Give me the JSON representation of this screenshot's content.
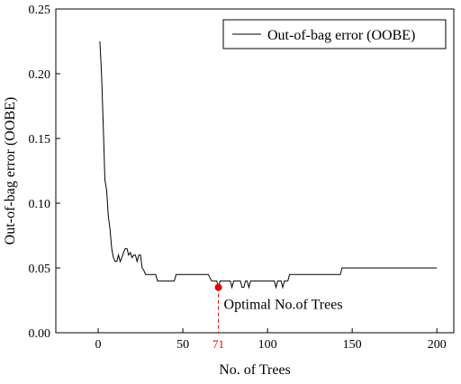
{
  "chart_data": {
    "type": "line",
    "xlabel": "No. of Trees",
    "ylabel": "Out-of-bag error (OOBE)",
    "xlim": [
      -25,
      210
    ],
    "ylim": [
      0,
      0.25
    ],
    "x_ticks": [
      0,
      50,
      100,
      150,
      200
    ],
    "x_tick_labels": [
      "0",
      "50",
      "100",
      "150",
      "200"
    ],
    "y_ticks": [
      0.0,
      0.05,
      0.1,
      0.15,
      0.2,
      0.25
    ],
    "y_tick_labels": [
      "0.00",
      "0.05",
      "0.10",
      "0.15",
      "0.20",
      "0.25"
    ],
    "legend": {
      "position": "top-right",
      "entries": [
        "Out-of-bag error (OOBE)"
      ]
    },
    "series": [
      {
        "name": "Out-of-bag error (OOBE)",
        "color": "#000000",
        "x": [
          1,
          2,
          3,
          4,
          5,
          6,
          7,
          8,
          9,
          10,
          11,
          12,
          13,
          14,
          15,
          16,
          17,
          18,
          19,
          20,
          21,
          22,
          23,
          24,
          25,
          26,
          27,
          28,
          30,
          32,
          34,
          35,
          36,
          45,
          46,
          49,
          50,
          55,
          60,
          65,
          67,
          68,
          70,
          71,
          72,
          74,
          78,
          79,
          80,
          82,
          84,
          85,
          86,
          87,
          88,
          89,
          90,
          92,
          95,
          100,
          104,
          105,
          106,
          108,
          109,
          110,
          112,
          113,
          114,
          115,
          130,
          140,
          143,
          144,
          200
        ],
        "y": [
          0.225,
          0.2,
          0.16,
          0.118,
          0.11,
          0.09,
          0.08,
          0.065,
          0.058,
          0.055,
          0.055,
          0.06,
          0.055,
          0.058,
          0.062,
          0.065,
          0.065,
          0.06,
          0.062,
          0.058,
          0.06,
          0.06,
          0.055,
          0.06,
          0.06,
          0.05,
          0.048,
          0.045,
          0.045,
          0.045,
          0.045,
          0.04,
          0.04,
          0.04,
          0.045,
          0.045,
          0.045,
          0.045,
          0.045,
          0.045,
          0.04,
          0.04,
          0.04,
          0.035,
          0.04,
          0.04,
          0.04,
          0.035,
          0.04,
          0.04,
          0.04,
          0.035,
          0.035,
          0.04,
          0.04,
          0.035,
          0.04,
          0.04,
          0.04,
          0.04,
          0.04,
          0.035,
          0.04,
          0.04,
          0.035,
          0.04,
          0.04,
          0.045,
          0.045,
          0.045,
          0.045,
          0.045,
          0.045,
          0.05,
          0.05
        ]
      }
    ],
    "annotations": [
      {
        "text": "Optimal No.of Trees",
        "x": 71,
        "y": 0.035,
        "marker_color": "#e00000",
        "tick_label": "71",
        "tick_label_color": "#e00000"
      }
    ]
  }
}
